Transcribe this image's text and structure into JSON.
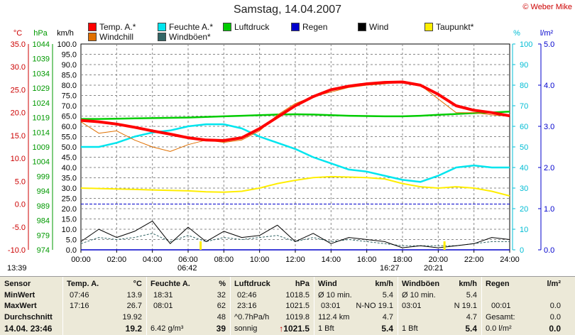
{
  "title": "Samstag, 14.04.2007",
  "credit": "© Weber Mike",
  "axes": {
    "temp_unit": "°C",
    "hpa_unit": "hPa",
    "kmh_unit": "km/h",
    "pct_unit": "%",
    "rain_unit": "l/m²",
    "temp_ticks": [
      "35.0",
      "30.0",
      "25.0",
      "20.0",
      "15.0",
      "10.0",
      "5.0",
      "0.0",
      "-5.0",
      "-10.0"
    ],
    "hpa_ticks": [
      "1044",
      "1039",
      "1034",
      "1029",
      "1024",
      "1019",
      "1014",
      "1009",
      "1004",
      "999",
      "994",
      "989",
      "984",
      "979",
      "974"
    ],
    "kmh_ticks": [
      "100.0",
      "95.0",
      "90.0",
      "85.0",
      "80.0",
      "75.0",
      "70.0",
      "65.0",
      "60.0",
      "55.0",
      "50.0",
      "45.0",
      "40.0",
      "35.0",
      "30.0",
      "25.0",
      "20.0",
      "15.0",
      "10.0",
      "5.0",
      "0.0"
    ],
    "pct_ticks": [
      "100",
      "90",
      "80",
      "70",
      "60",
      "50",
      "40",
      "30",
      "20",
      "10",
      "0"
    ],
    "rain_ticks": [
      "5.0",
      "4.0",
      "3.0",
      "2.0",
      "1.0",
      "0.0"
    ],
    "x_ticks": [
      "00:00",
      "02:00",
      "04:00",
      "06:00",
      "08:00",
      "10:00",
      "12:00",
      "14:00",
      "16:00",
      "18:00",
      "20:00",
      "22:00",
      "24:00"
    ]
  },
  "legend": [
    {
      "label": "Temp. A.*",
      "color": "#ff0000"
    },
    {
      "label": "Feuchte A.*",
      "color": "#00e5ee"
    },
    {
      "label": "Luftdruck",
      "color": "#00cc00"
    },
    {
      "label": "Regen",
      "color": "#0000cc"
    },
    {
      "label": "Wind",
      "color": "#000000"
    },
    {
      "label": "Taupunkt*",
      "color": "#ffee00"
    },
    {
      "label": "Windchill",
      "color": "#e07000"
    },
    {
      "label": "Windböen*",
      "color": "#336666"
    }
  ],
  "timebar": {
    "now": "13:39",
    "sunrise": "06:42",
    "max_time": "16:27",
    "sunset": "20:21"
  },
  "chart_data": {
    "type": "line",
    "x_hours": [
      0,
      1,
      2,
      3,
      4,
      5,
      6,
      7,
      8,
      9,
      10,
      11,
      12,
      13,
      14,
      15,
      16,
      17,
      18,
      19,
      20,
      21,
      22,
      23,
      24
    ],
    "series": [
      {
        "name": "Temp. A.*",
        "axis": "°C",
        "values": [
          18.3,
          18.0,
          17.5,
          16.8,
          16.0,
          15.3,
          14.5,
          14.0,
          13.9,
          14.5,
          16.5,
          19.0,
          21.5,
          23.5,
          25.0,
          25.8,
          26.3,
          26.6,
          26.7,
          26.0,
          24.0,
          21.5,
          20.5,
          20.0,
          19.3
        ]
      },
      {
        "name": "Windchill",
        "axis": "°C",
        "values": [
          18.0,
          15.5,
          16.0,
          14.0,
          12.5,
          11.5,
          13.0,
          14.0,
          13.5,
          14.0,
          16.0,
          19.5,
          22.0,
          23.5,
          24.5,
          25.5,
          26.0,
          26.3,
          26.7,
          26.0,
          23.0,
          20.0,
          20.0,
          19.5,
          19.2
        ]
      },
      {
        "name": "Feuchte A.*",
        "axis": "%",
        "values": [
          50,
          50,
          52,
          55,
          57,
          58,
          60,
          61,
          61,
          59,
          55,
          52,
          49,
          45,
          42,
          39,
          38,
          36,
          34,
          33,
          36,
          40,
          41,
          40,
          40
        ]
      },
      {
        "name": "Luftdruck",
        "axis": "hPa",
        "values": [
          1018.5,
          1018.5,
          1018.6,
          1018.7,
          1018.8,
          1018.9,
          1019.0,
          1019.2,
          1019.4,
          1019.6,
          1019.8,
          1020.0,
          1020.1,
          1020.0,
          1019.8,
          1019.6,
          1019.5,
          1019.4,
          1019.4,
          1019.6,
          1019.9,
          1020.2,
          1020.5,
          1020.7,
          1021.0
        ]
      },
      {
        "name": "Taupunkt*",
        "axis": "°C",
        "values": [
          3.5,
          3.4,
          3.3,
          3.2,
          3.1,
          3.0,
          2.9,
          2.7,
          2.6,
          2.8,
          3.5,
          4.5,
          5.2,
          5.8,
          6.0,
          5.9,
          5.8,
          5.5,
          4.5,
          3.8,
          3.5,
          3.8,
          3.5,
          2.8,
          1.8
        ]
      },
      {
        "name": "Wind",
        "axis": "km/h",
        "values": [
          4,
          10,
          6,
          9,
          14,
          3,
          11,
          4,
          9,
          6,
          7,
          12,
          4,
          8,
          3,
          6,
          5,
          4,
          1,
          2,
          1,
          2,
          3,
          6,
          5
        ]
      },
      {
        "name": "Windböen*",
        "axis": "km/h",
        "values": [
          3,
          6,
          5,
          6,
          8,
          4,
          7,
          4,
          6,
          5,
          6,
          7,
          4,
          6,
          4,
          5,
          4,
          3,
          2,
          2,
          2,
          2,
          3,
          4,
          4
        ]
      },
      {
        "name": "Regen",
        "axis": "l/m²",
        "values": [
          0,
          0,
          0,
          0,
          0,
          0,
          0,
          0,
          0,
          0,
          0,
          0,
          0,
          0,
          0,
          0,
          0,
          0,
          0,
          0,
          0,
          0,
          0,
          0,
          0
        ]
      }
    ],
    "ylim_temp": [
      -10,
      35
    ],
    "ylim_hpa": [
      974,
      1044
    ],
    "ylim_kmh": [
      0,
      100
    ],
    "ylim_pct": [
      0,
      100
    ],
    "ylim_rain": [
      0,
      5
    ],
    "grid": true
  },
  "stats": {
    "sensor": {
      "header": "Sensor",
      "rows": [
        "MinWert",
        "MaxWert",
        "Durchschnitt"
      ],
      "date": "14.04. 23:46"
    },
    "temp": {
      "header": "Temp. A.",
      "unit": "°C",
      "min_t": "07:46",
      "min": "13.9",
      "max_t": "17:16",
      "max": "26.7",
      "avg": "19.92",
      "cur": "19.2"
    },
    "hum": {
      "header": "Feuchte A.",
      "unit": "%",
      "min_t": "18:31",
      "min": "32",
      "max_t": "08:01",
      "max": "62",
      "avg": "48",
      "abs": "6.42 g/m³",
      "cur": "39"
    },
    "press": {
      "header": "Luftdruck",
      "unit": "hPa",
      "min_t": "02:46",
      "min": "1018.5",
      "max_t": "23:16",
      "max": "1021.5",
      "trend": "^0.7hPa/h",
      "avg": "1019.8",
      "forecast": "sonnig",
      "cur": "1021.5"
    },
    "wind": {
      "header": "Wind",
      "unit": "km/h",
      "r1a": "Ø 10 min.",
      "r1b": "5.4",
      "r2a": "03:01",
      "r2m": "N-NO 19.1",
      "r3a": "112.4 km",
      "r3b": "4.7",
      "r4a": "1 Bft",
      "r4b": "5.4"
    },
    "gust": {
      "header": "Windböen",
      "unit": "km/h",
      "r1a": "Ø 10 min.",
      "r1b": "5.4",
      "r2a": "03:01",
      "r2m": "N 19.1",
      "r3b": "4.7",
      "r4a": "1 Bft",
      "r4b": "5.4"
    },
    "rain": {
      "header": "Regen",
      "unit": "l/m²",
      "r2a": "00:01",
      "r2b": "0.0",
      "r3a": "Gesamt:",
      "r3b": "0.0",
      "r4a": "0.0 l/m²",
      "r4b": "0.0"
    }
  }
}
